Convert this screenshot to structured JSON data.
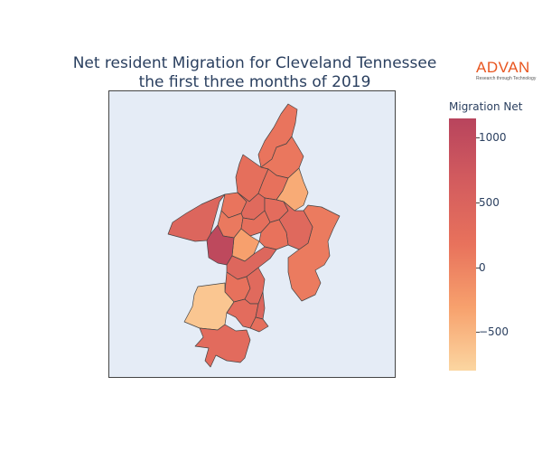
{
  "title": {
    "line1": "Net resident Migration for Cleveland Tennessee",
    "line2": "the first three months of 2019"
  },
  "logo": {
    "name": "ADVAN",
    "tagline": "Research through Technology"
  },
  "colorbar": {
    "title": "Migration Net",
    "range": [
      -800,
      1150
    ],
    "colorscale": [
      "#fbd6a1",
      "#f7a16d",
      "#e8725c",
      "#d35c5e",
      "#b8445d"
    ],
    "ticks": [
      {
        "value": 1000,
        "label": "1000"
      },
      {
        "value": 500,
        "label": "500"
      },
      {
        "value": 0,
        "label": "0"
      },
      {
        "value": -500,
        "label": "−500"
      }
    ]
  },
  "map": {
    "background": "#e5ecf6",
    "border_color": "#444444",
    "regions": [
      {
        "id": "north-tip",
        "value": 150
      },
      {
        "id": "north-upper",
        "value": 120
      },
      {
        "id": "north-mid-left",
        "value": 250
      },
      {
        "id": "north-mid-right",
        "value": 200
      },
      {
        "id": "ne-pale",
        "value": -400
      },
      {
        "id": "east-large",
        "value": 80
      },
      {
        "id": "west-large",
        "value": 450
      },
      {
        "id": "center-left-a",
        "value": 150
      },
      {
        "id": "center-a",
        "value": 350
      },
      {
        "id": "center-b",
        "value": 300
      },
      {
        "id": "center-c",
        "value": 100
      },
      {
        "id": "center-d",
        "value": 250
      },
      {
        "id": "center-e",
        "value": 380
      },
      {
        "id": "center-pale",
        "value": -300
      },
      {
        "id": "center-right",
        "value": 180
      },
      {
        "id": "dark-west",
        "value": 1050
      },
      {
        "id": "south-corridor",
        "value": 420
      },
      {
        "id": "south-mid-a",
        "value": 200
      },
      {
        "id": "south-mid-b",
        "value": 350
      },
      {
        "id": "south-pale",
        "value": -650
      },
      {
        "id": "south-c",
        "value": 300
      },
      {
        "id": "south-d",
        "value": 450
      },
      {
        "id": "south-e",
        "value": 250
      },
      {
        "id": "south-bottom",
        "value": 320
      }
    ]
  }
}
